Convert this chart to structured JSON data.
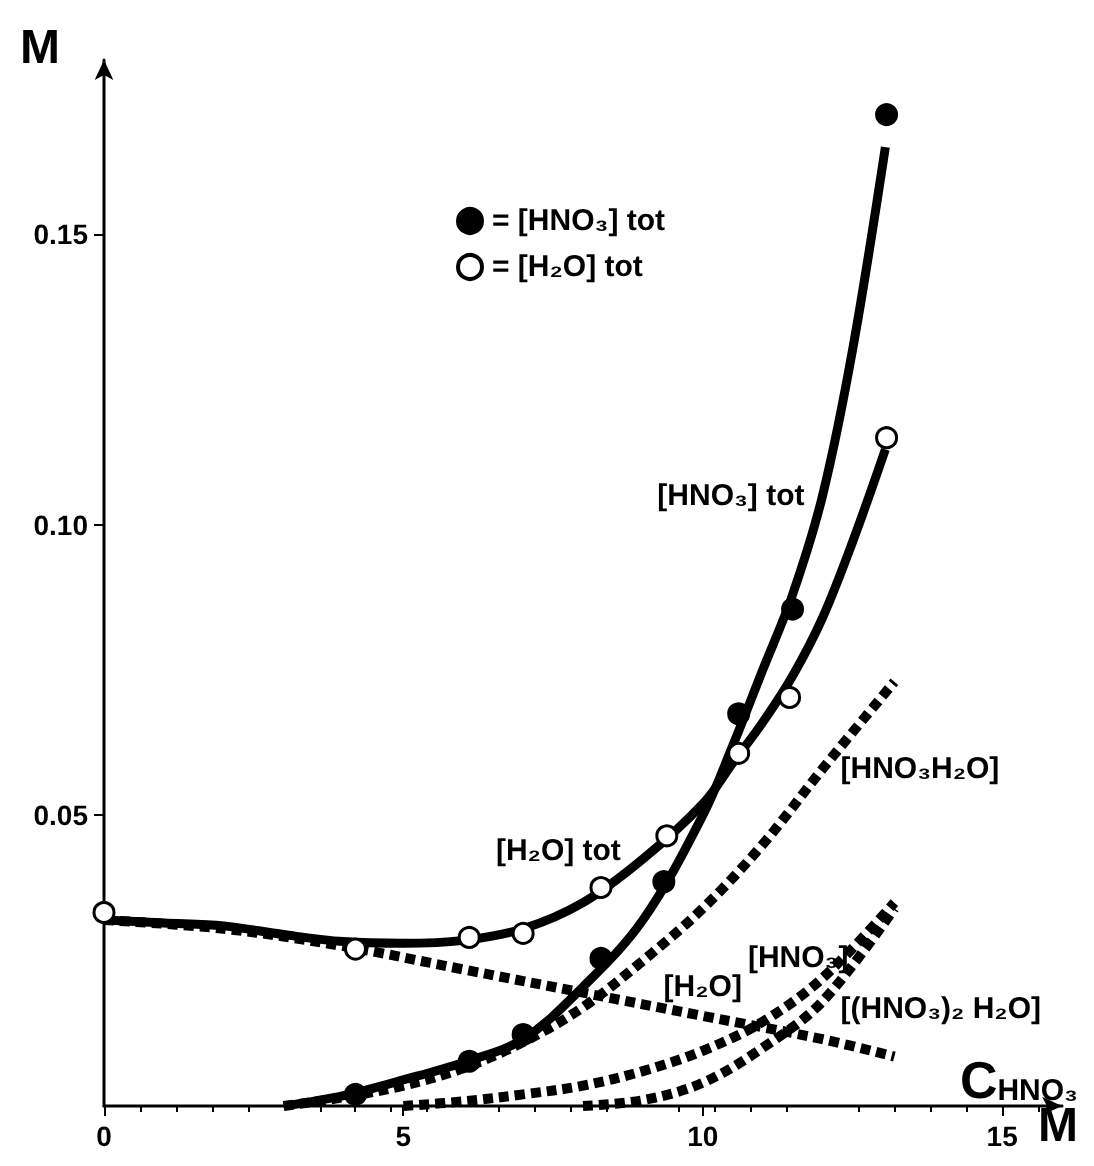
{
  "chart_data": {
    "type": "line",
    "xlabel": "C$_{HNO₃}$",
    "ylabel": "M",
    "xlim": [
      0,
      16
    ],
    "ylim": [
      0,
      0.18
    ],
    "xticks": [
      0,
      5,
      10,
      15
    ],
    "yticks": [
      {
        "value": 0.05,
        "label": "0.05"
      },
      {
        "value": 0.1,
        "label": "0.10"
      },
      {
        "value": 0.15,
        "label": "0.15"
      }
    ],
    "legend": "top",
    "grid": false,
    "series": [
      {
        "type": "scatter",
        "name": "= [HNO₃] tot",
        "marker": "circle",
        "color": "#000000",
        "x": [
          4.2,
          6.1,
          7.0,
          8.3,
          9.35,
          10.6,
          11.5,
          13.07
        ],
        "values": [
          0.002,
          0.0077,
          0.0123,
          0.0254,
          0.0386,
          0.0675,
          0.0855,
          0.1706
        ]
      },
      {
        "type": "scatter",
        "name": "= [H₂O] tot",
        "marker": "circle",
        "color": "#ffffff",
        "x": [
          0,
          4.2,
          6.1,
          7.0,
          8.3,
          9.4,
          10.6,
          11.45,
          13.07
        ],
        "values": [
          0.0333,
          0.027,
          0.029,
          0.0297,
          0.0376,
          0.0465,
          0.0607,
          0.0703,
          0.115
        ]
      },
      {
        "name": "[HNO₃] tot",
        "line_style": "solid",
        "color": "#000000",
        "x": [
          3,
          4,
          5,
          6,
          7,
          8,
          9,
          10,
          10.5,
          11,
          11.5,
          12,
          12.5,
          13.05
        ],
        "values": [
          0,
          0.0018,
          0.0045,
          0.0075,
          0.0115,
          0.0205,
          0.032,
          0.05,
          0.062,
          0.075,
          0.088,
          0.105,
          0.13,
          0.165
        ]
      },
      {
        "name": "[H₂O] tot",
        "line_style": "solid",
        "color": "#000000",
        "x": [
          0,
          1,
          2,
          3,
          4,
          5,
          6,
          7,
          8,
          9,
          10,
          10.5,
          11,
          11.5,
          12,
          12.5,
          13.05
        ],
        "values": [
          0.032,
          0.0315,
          0.031,
          0.0295,
          0.0283,
          0.028,
          0.0285,
          0.0305,
          0.035,
          0.0425,
          0.052,
          0.059,
          0.066,
          0.074,
          0.084,
          0.097,
          0.113
        ]
      },
      {
        "name": "[H₂O]",
        "line_style": "dashed",
        "color": "#000000",
        "x": [
          0,
          2,
          4,
          6,
          8,
          10,
          12,
          13.2
        ],
        "values": [
          0.032,
          0.0305,
          0.0275,
          0.0235,
          0.0195,
          0.0155,
          0.0115,
          0.0085
        ]
      },
      {
        "name": "[HNO₃H₂O]",
        "line_style": "dashed",
        "color": "#000000",
        "x": [
          3,
          4,
          5,
          6,
          7,
          8,
          9,
          10,
          11,
          12,
          13.2
        ],
        "values": [
          0,
          0.0015,
          0.0035,
          0.0065,
          0.011,
          0.017,
          0.025,
          0.034,
          0.045,
          0.058,
          0.073
        ]
      },
      {
        "name": "[HNO₃]",
        "line_style": "dashed",
        "color": "#000000",
        "x": [
          5,
          6,
          7,
          8,
          9,
          10,
          11,
          12,
          13.2
        ],
        "values": [
          0,
          0.0008,
          0.002,
          0.0035,
          0.006,
          0.0095,
          0.0145,
          0.022,
          0.035
        ]
      },
      {
        "name": "[(HNO₃)₂ H₂O]",
        "line_style": "dashed",
        "color": "#000000",
        "x": [
          8,
          9,
          10,
          11,
          12,
          13.2
        ],
        "values": [
          0,
          0.001,
          0.004,
          0.01,
          0.018,
          0.034
        ]
      }
    ],
    "annotations": [
      "M"
    ]
  }
}
